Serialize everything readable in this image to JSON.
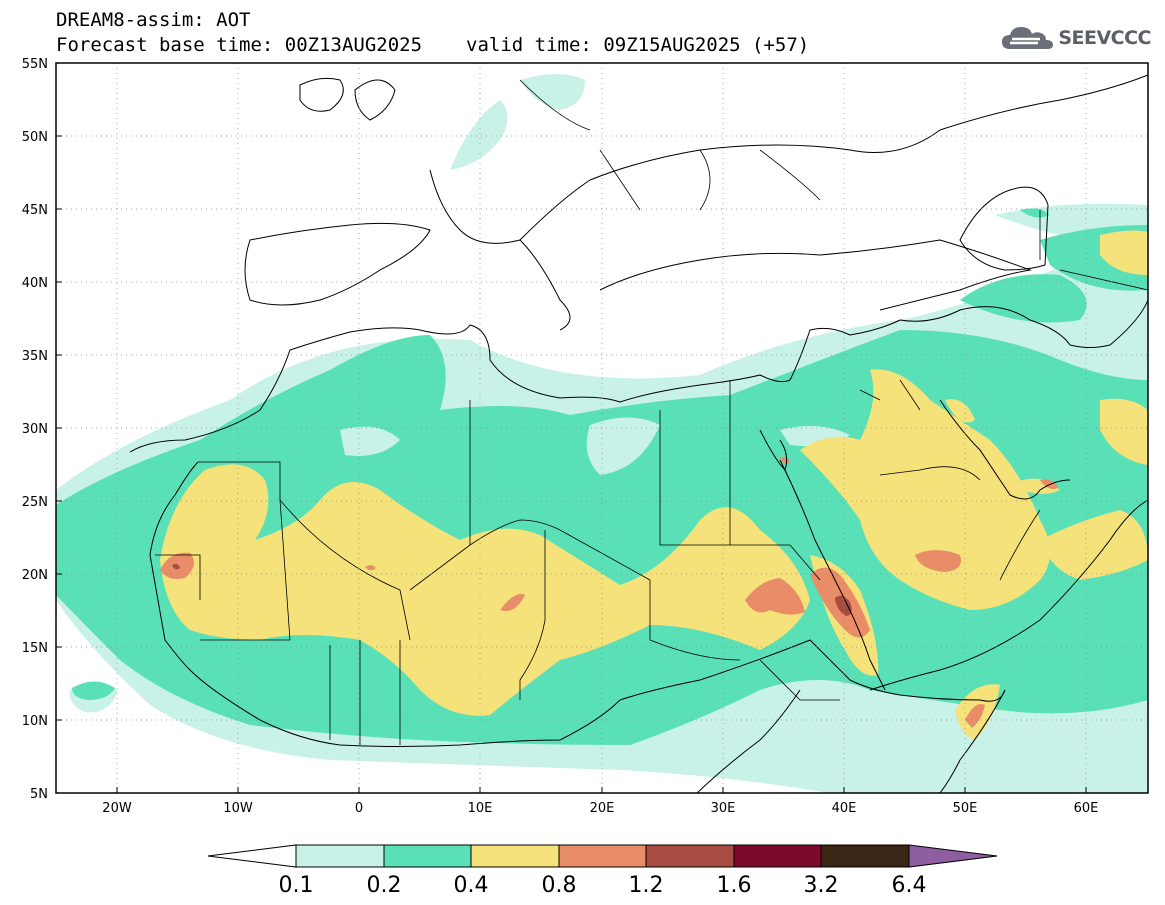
{
  "header": {
    "title": "DREAM8-assim: AOT",
    "base_time": "Forecast base time: 00Z13AUG2025",
    "valid_time": "valid time: 09Z15AUG2025 (+57)"
  },
  "logo": {
    "text": "SEEVCCC",
    "icon": "cloud-icon"
  },
  "axes": {
    "lat_ticks": [
      "55N",
      "50N",
      "45N",
      "40N",
      "35N",
      "30N",
      "25N",
      "20N",
      "15N",
      "10N",
      "5N"
    ],
    "lon_ticks": [
      "20W",
      "10W",
      "0",
      "10E",
      "20E",
      "30E",
      "40E",
      "50E",
      "60E"
    ],
    "lat_range": [
      5,
      55
    ],
    "lon_range": [
      -25,
      65
    ]
  },
  "colorbar": {
    "labels": [
      "0.1",
      "0.2",
      "0.4",
      "0.8",
      "1.2",
      "1.6",
      "3.2",
      "6.4"
    ],
    "colors": [
      "#ffffff",
      "#c8f1e8",
      "#5ae0b6",
      "#f5e27a",
      "#e98c68",
      "#a84c42",
      "#7c0a2a",
      "#3a2517",
      "#8e5ea0"
    ]
  },
  "colors": {
    "aot_0_1": "#c8f1e8",
    "aot_0_2": "#5ae0b6",
    "aot_0_4": "#f5e27a",
    "aot_0_8": "#e98c68",
    "aot_1_2": "#a84c42"
  }
}
